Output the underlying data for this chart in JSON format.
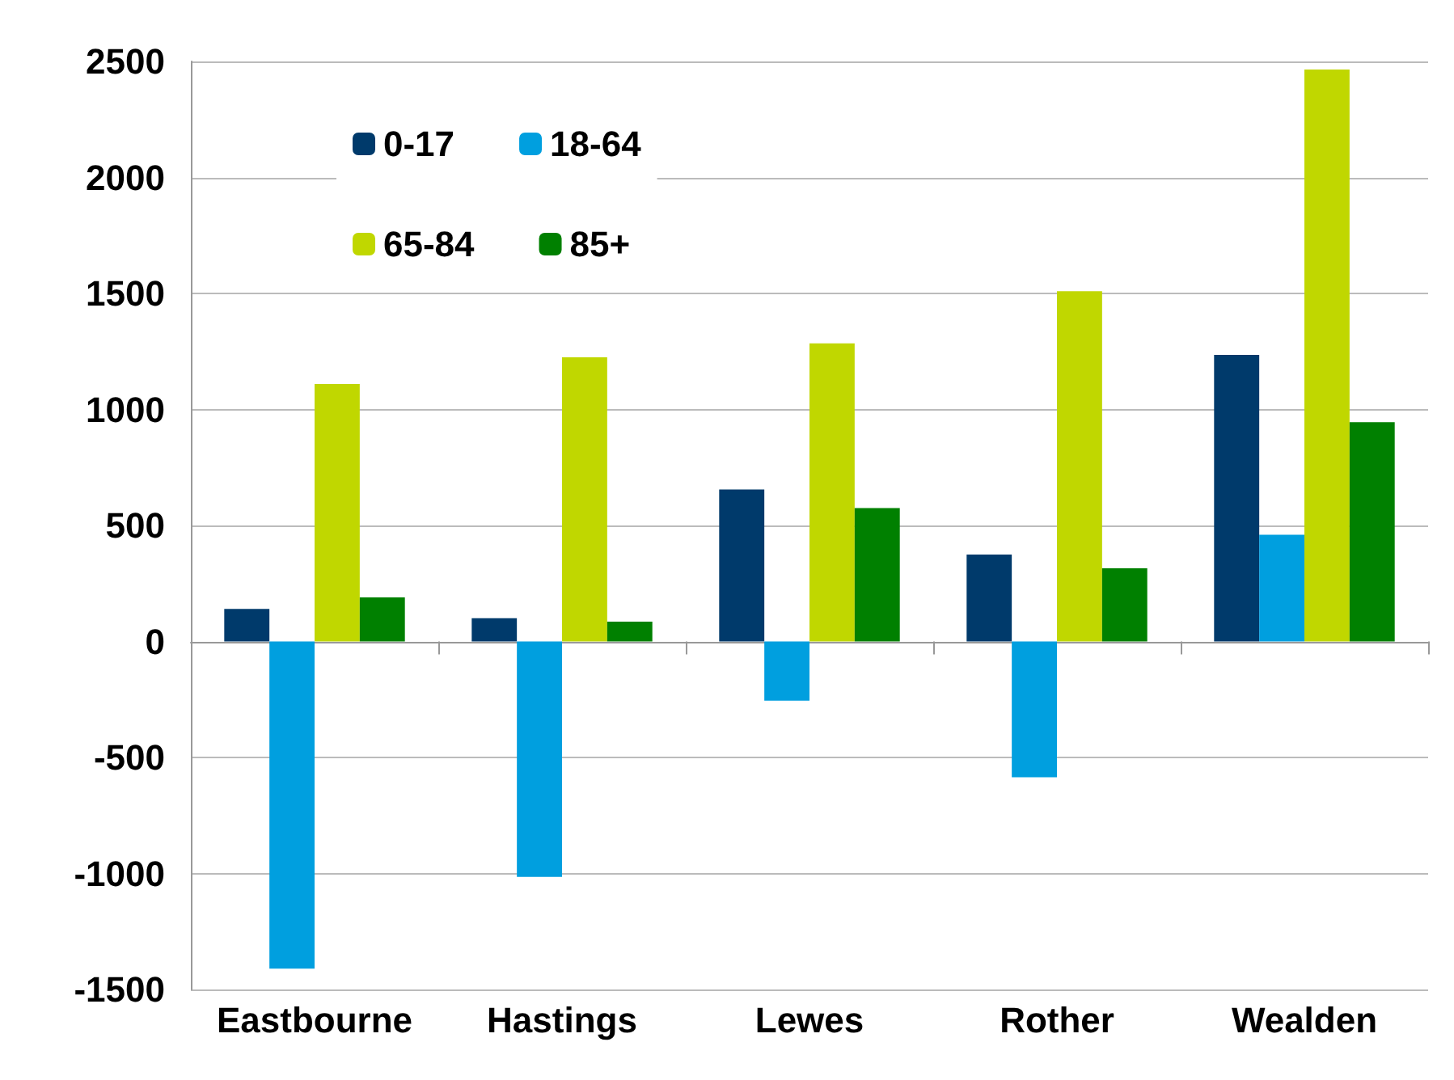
{
  "chart_data": {
    "type": "bar",
    "categories": [
      "Eastbourne",
      "Hastings",
      "Lewes",
      "Rother",
      "Wealden"
    ],
    "series": [
      {
        "name": "0-17",
        "color": "#003a6b",
        "values": [
          140,
          100,
          655,
          375,
          1235
        ]
      },
      {
        "name": "18-64",
        "color": "#009fdf",
        "values": [
          -1410,
          -1015,
          -255,
          -585,
          460
        ]
      },
      {
        "name": "65-84",
        "color": "#c0d700",
        "values": [
          1110,
          1225,
          1285,
          1510,
          2465
        ]
      },
      {
        "name": "85+",
        "color": "#008000",
        "values": [
          190,
          85,
          575,
          315,
          945
        ]
      }
    ],
    "ylim": [
      -1500,
      2500
    ],
    "yticks": [
      -1500,
      -1000,
      -500,
      0,
      500,
      1000,
      1500,
      2000,
      2500
    ],
    "grid": "y",
    "legend": "top"
  }
}
